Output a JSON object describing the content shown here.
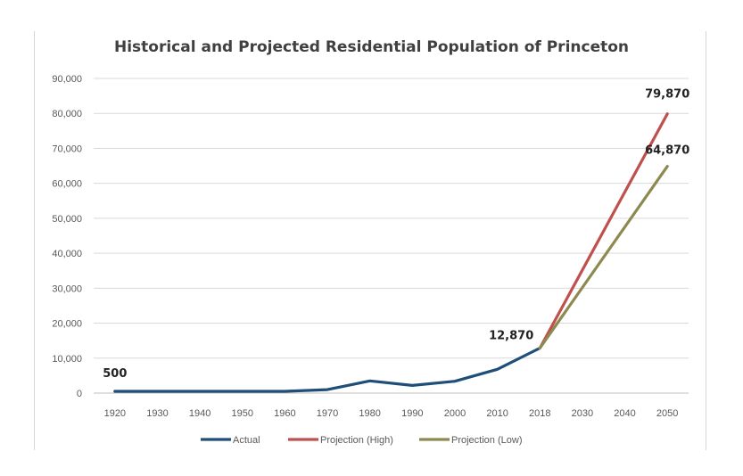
{
  "chart_data": {
    "type": "line",
    "title": "Historical and Projected Residential Population of Princeton",
    "xlabel": "",
    "ylabel": "",
    "categories": [
      "1920",
      "1930",
      "1940",
      "1950",
      "1960",
      "1970",
      "1980",
      "1990",
      "2000",
      "2010",
      "2018",
      "2030",
      "2040",
      "2050"
    ],
    "ylim": [
      0,
      90000
    ],
    "yticks": [
      "0",
      "10,000",
      "20,000",
      "30,000",
      "40,000",
      "50,000",
      "60,000",
      "70,000",
      "80,000",
      "90,000"
    ],
    "grid": true,
    "legend_position": "bottom",
    "series": [
      {
        "name": "Actual",
        "color": "#1f4e79",
        "values": [
          500,
          500,
          500,
          500,
          500,
          1000,
          3500,
          2200,
          3400,
          6800,
          12870,
          null,
          null,
          null
        ]
      },
      {
        "name": "Projection (High)",
        "color": "#c0504d",
        "values": [
          null,
          null,
          null,
          null,
          null,
          null,
          null,
          null,
          null,
          null,
          12870,
          null,
          null,
          79870
        ]
      },
      {
        "name": "Projection (Low)",
        "color": "#8c8a4e",
        "values": [
          null,
          null,
          null,
          null,
          null,
          null,
          null,
          null,
          null,
          null,
          12870,
          null,
          null,
          64870
        ]
      }
    ],
    "annotations": [
      {
        "text": "500",
        "series": 0,
        "category": "1920",
        "value": 500
      },
      {
        "text": "12,870",
        "series": 0,
        "category": "2018",
        "value": 12870
      },
      {
        "text": "79,870",
        "series": 1,
        "category": "2050",
        "value": 79870
      },
      {
        "text": "64,870",
        "series": 2,
        "category": "2050",
        "value": 64870
      }
    ]
  }
}
